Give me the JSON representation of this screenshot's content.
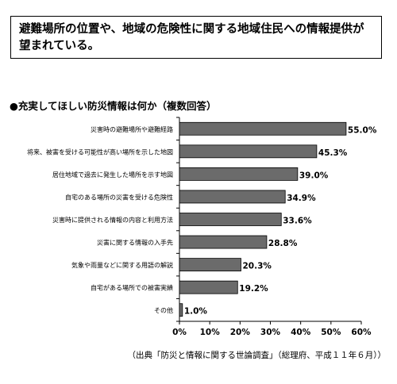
{
  "summary": {
    "text": "避難場所の位置や、地域の危険性に関する地域住民への情報提供が望まれている。"
  },
  "chart_title": "●充実してほしい防災情報は何か（複数回答）",
  "source": "（出典「防災と情報に関する世論調査」（総理府、平成１１年６月））",
  "chart_data": {
    "type": "bar",
    "orientation": "horizontal",
    "title": "●充実してほしい防災情報は何か（複数回答）",
    "categories": [
      "災害時の避難場所や避難経路",
      "将来、被害を受ける可能性が高い場所を示した地図",
      "居住地域で過去に発生した場所を示す地図",
      "自宅のある場所の災害を受ける危険性",
      "災害時に提供される情報の内容と利用方法",
      "災害に関する情報の入手先",
      "気象や雨量などに関する用語の解説",
      "自宅がある場所での被害実績",
      "その他"
    ],
    "values": [
      55.0,
      45.3,
      39.0,
      34.9,
      33.6,
      28.8,
      20.3,
      19.2,
      1.0
    ],
    "value_labels": [
      "55.0%",
      "45.3%",
      "39.0%",
      "34.9%",
      "33.6%",
      "28.8%",
      "20.3%",
      "19.2%",
      "1.0%"
    ],
    "xlim": [
      0,
      60
    ],
    "xticks": [
      0,
      10,
      20,
      30,
      40,
      50,
      60
    ],
    "xtick_labels": [
      "0%",
      "10%",
      "20%",
      "30%",
      "40%",
      "50%",
      "60%"
    ],
    "bar_color": "#6b6b6b",
    "grid": false
  }
}
